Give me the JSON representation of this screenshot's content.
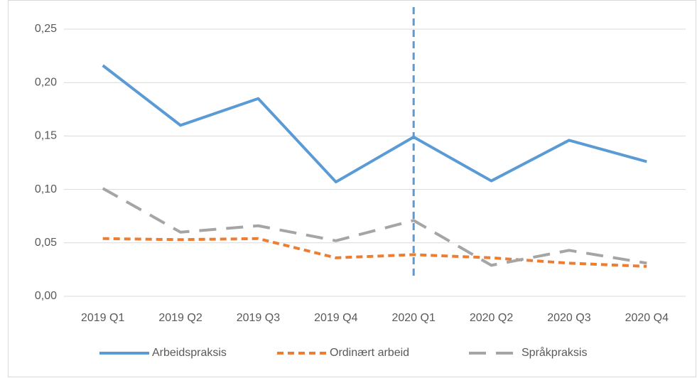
{
  "chart_data": {
    "type": "line",
    "categories": [
      "2019 Q1",
      "2019 Q2",
      "2019 Q3",
      "2019 Q4",
      "2020 Q1",
      "2020 Q2",
      "2020 Q3",
      "2020 Q4"
    ],
    "series": [
      {
        "name": "Arbeidspraksis",
        "color": "#5b9bd5",
        "style": "solid",
        "values": [
          0.216,
          0.16,
          0.185,
          0.107,
          0.149,
          0.108,
          0.146,
          0.126
        ]
      },
      {
        "name": "Ordinært arbeid",
        "color": "#ed7d31",
        "style": "dash",
        "values": [
          0.054,
          0.053,
          0.054,
          0.036,
          0.039,
          0.036,
          0.031,
          0.028
        ]
      },
      {
        "name": "Språkpraksis",
        "color": "#a5a5a5",
        "style": "longdash",
        "values": [
          0.101,
          0.06,
          0.066,
          0.052,
          0.071,
          0.029,
          0.043,
          0.031
        ]
      }
    ],
    "ylim": [
      0,
      0.25
    ],
    "yticks": [
      {
        "value": 0,
        "label": "0,00"
      },
      {
        "value": 0.05,
        "label": "0,05"
      },
      {
        "value": 0.1,
        "label": "0,10"
      },
      {
        "value": 0.15,
        "label": "0,15"
      },
      {
        "value": 0.2,
        "label": "0,20"
      },
      {
        "value": 0.25,
        "label": "0,25"
      }
    ],
    "grid": true,
    "legend": "bottom",
    "vline": "2020 Q1",
    "vline_color": "#5b9bd5"
  }
}
